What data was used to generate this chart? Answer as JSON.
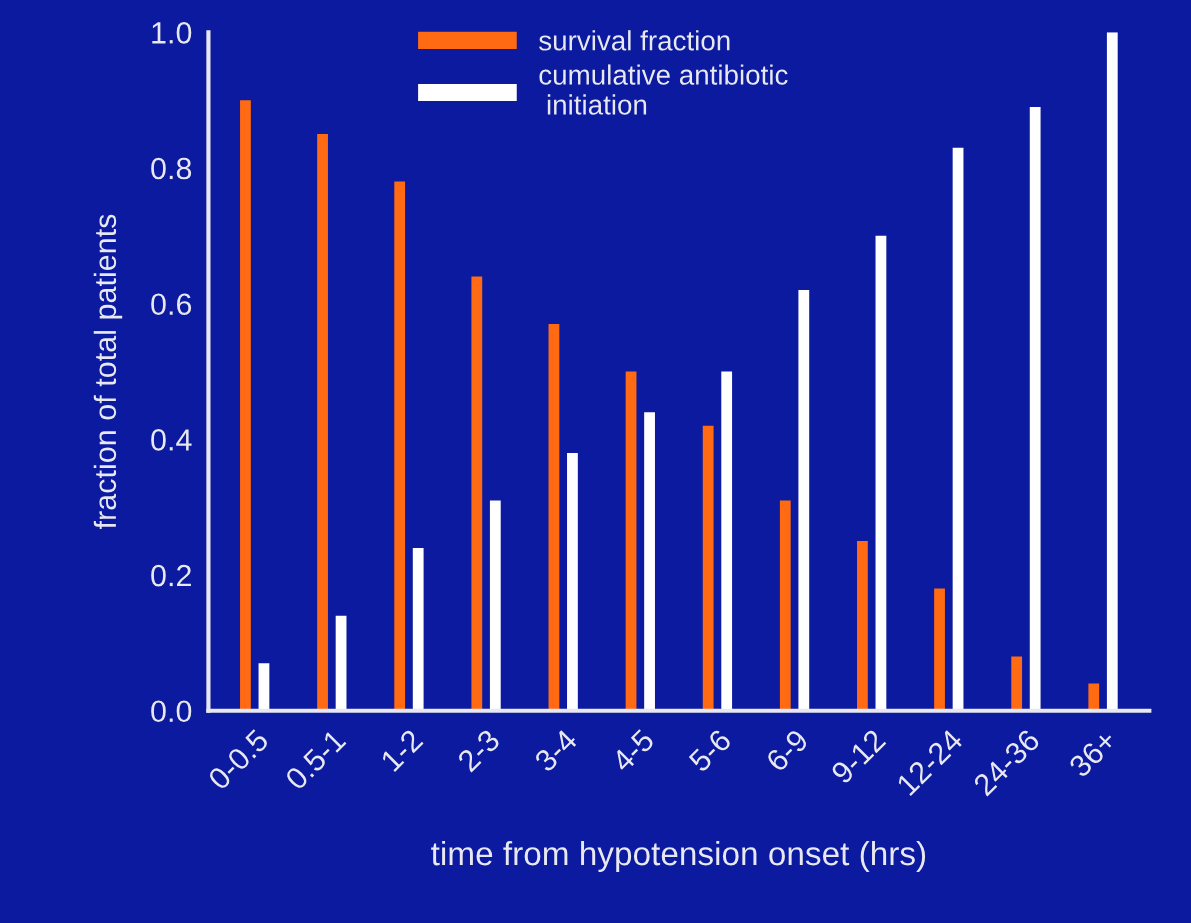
{
  "chart_data": {
    "type": "bar",
    "xlabel": "time from hypotension onset (hrs)",
    "ylabel": "fraction of total patients",
    "categories": [
      "0-0.5",
      "0.5-1",
      "1-2",
      "2-3",
      "3-4",
      "4-5",
      "5-6",
      "6-9",
      "9-12",
      "12-24",
      "24-36",
      "36+"
    ],
    "series": [
      {
        "name": "survival fraction",
        "color": "#ff6a13",
        "values": [
          0.9,
          0.85,
          0.78,
          0.64,
          0.57,
          0.5,
          0.42,
          0.31,
          0.25,
          0.18,
          0.08,
          0.04
        ]
      },
      {
        "name": "cumulative antibiotic\n initiation",
        "color": "#ffffff",
        "values": [
          0.07,
          0.14,
          0.24,
          0.31,
          0.38,
          0.44,
          0.5,
          0.62,
          0.7,
          0.83,
          0.89,
          1.0
        ]
      }
    ],
    "ylim": [
      0.0,
      1.0
    ],
    "yticks": [
      {
        "value": 0,
        "label": "0.0"
      },
      0.2,
      0.4,
      0.6,
      0.8,
      {
        "value": 1,
        "label": "1.0"
      }
    ],
    "grid": false,
    "legend": "top"
  }
}
